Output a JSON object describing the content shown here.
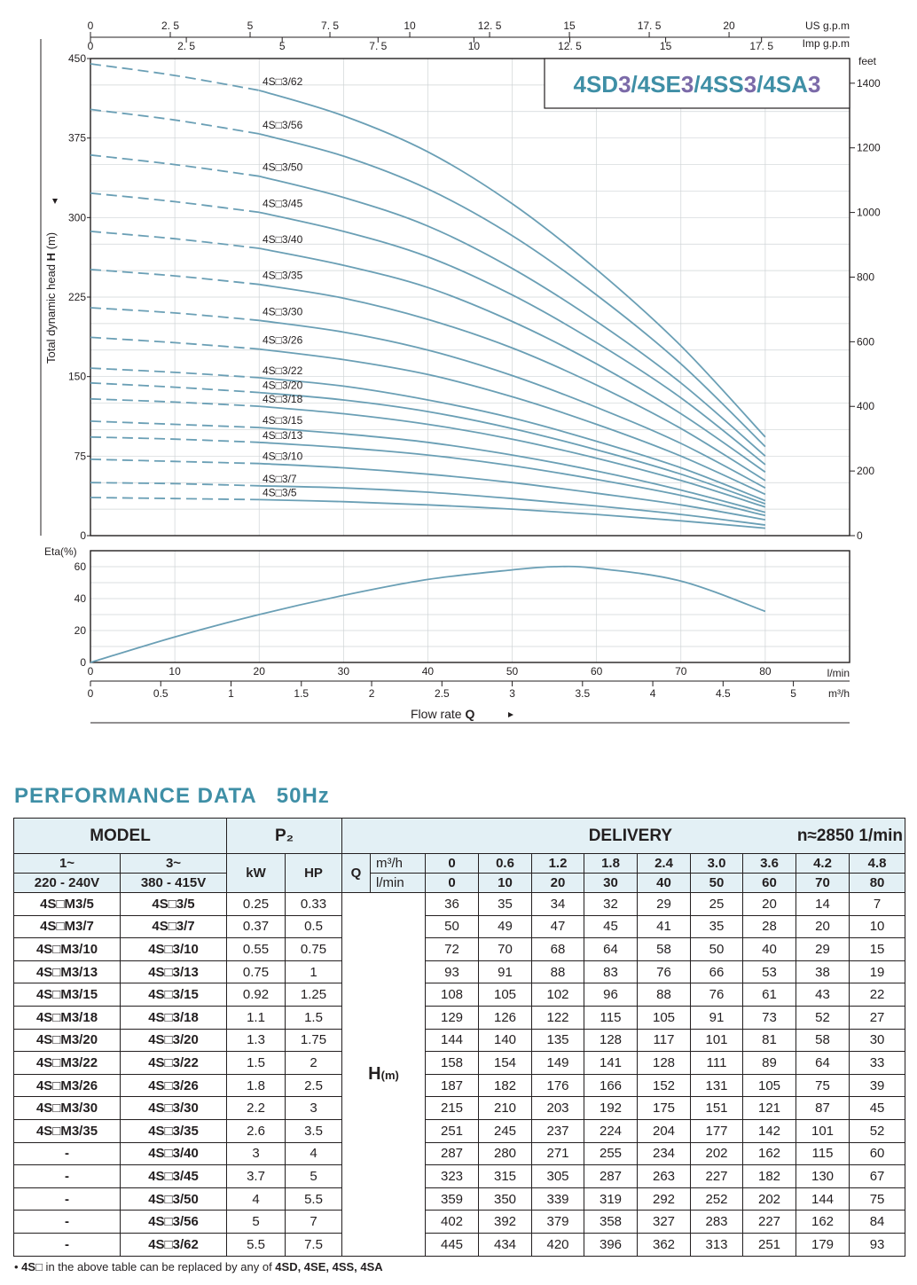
{
  "chart_data": [
    {
      "type": "line",
      "title": "4SD3/4SE3/4SS3/4SA3",
      "title_parts": [
        "4SD",
        "3",
        "/4SE",
        "3",
        "/4SS",
        "3",
        "/4SA",
        "3"
      ],
      "ylabel_prefix": "Total dynamic head ",
      "ylabel_bold": "H",
      "ylabel_suffix": " (m)",
      "ylim": [
        0,
        450
      ],
      "yticks": [
        "0",
        "75",
        "150",
        "225",
        "300",
        "375",
        "450"
      ],
      "y2label": "feet",
      "y2ticks": [
        "0",
        "200",
        "400",
        "600",
        "800",
        "1000",
        "1200",
        "1400"
      ],
      "y2_values": [
        0,
        200,
        400,
        600,
        800,
        1000,
        1200,
        1400
      ],
      "top_axis1_label": "US g.p.m",
      "top_axis1_ticks": [
        "0",
        "2. 5",
        "5",
        "7. 5",
        "10",
        "12. 5",
        "15",
        "17. 5",
        "20"
      ],
      "top_axis1_values": [
        0,
        2.5,
        5,
        7.5,
        10,
        12.5,
        15,
        17.5,
        20
      ],
      "top_axis2_label": "Imp g.p.m",
      "top_axis2_ticks": [
        "0",
        "2. 5",
        "5",
        "7. 5",
        "10",
        "12. 5",
        "15",
        "17. 5"
      ],
      "top_axis2_values": [
        0,
        2.5,
        5,
        7.5,
        10,
        12.5,
        15,
        17.5
      ],
      "xlim": [
        0,
        90
      ],
      "x_unit": "l/min",
      "dashed_until": 20,
      "x": [
        0,
        10,
        20,
        30,
        40,
        50,
        60,
        70,
        80
      ],
      "series": [
        {
          "name": "4S□3/62",
          "values": [
            445,
            434,
            420,
            396,
            362,
            313,
            251,
            179,
            93
          ]
        },
        {
          "name": "4S□3/56",
          "values": [
            402,
            392,
            379,
            358,
            327,
            283,
            227,
            162,
            84
          ]
        },
        {
          "name": "4S□3/50",
          "values": [
            359,
            350,
            339,
            319,
            292,
            252,
            202,
            144,
            75
          ]
        },
        {
          "name": "4S□3/45",
          "values": [
            323,
            315,
            305,
            287,
            263,
            227,
            182,
            130,
            67
          ]
        },
        {
          "name": "4S□3/40",
          "values": [
            287,
            280,
            271,
            255,
            234,
            202,
            162,
            115,
            60
          ]
        },
        {
          "name": "4S□3/35",
          "values": [
            251,
            245,
            237,
            224,
            204,
            177,
            142,
            101,
            52
          ]
        },
        {
          "name": "4S□3/30",
          "values": [
            215,
            210,
            203,
            192,
            175,
            151,
            121,
            87,
            45
          ]
        },
        {
          "name": "4S□3/26",
          "values": [
            187,
            182,
            176,
            166,
            152,
            131,
            105,
            75,
            39
          ]
        },
        {
          "name": "4S□3/22",
          "values": [
            158,
            154,
            149,
            141,
            128,
            111,
            89,
            64,
            33
          ]
        },
        {
          "name": "4S□3/20",
          "values": [
            144,
            140,
            135,
            128,
            117,
            101,
            81,
            58,
            30
          ]
        },
        {
          "name": "4S□3/18",
          "values": [
            129,
            126,
            122,
            115,
            105,
            91,
            73,
            52,
            27
          ]
        },
        {
          "name": "4S□3/15",
          "values": [
            108,
            105,
            102,
            96,
            88,
            76,
            61,
            43,
            22
          ]
        },
        {
          "name": "4S□3/13",
          "values": [
            93,
            91,
            88,
            83,
            76,
            66,
            53,
            38,
            19
          ]
        },
        {
          "name": "4S□3/10",
          "values": [
            72,
            70,
            68,
            64,
            58,
            50,
            40,
            29,
            15
          ]
        },
        {
          "name": "4S□3/7",
          "values": [
            50,
            49,
            47,
            45,
            41,
            35,
            28,
            20,
            10
          ]
        },
        {
          "name": "4S□3/5",
          "values": [
            36,
            35,
            34,
            32,
            29,
            25,
            20,
            14,
            7
          ]
        }
      ],
      "colors": {
        "curve": "#6a9fb5",
        "title": "#3f8fa6",
        "accent": "#7b6aa8"
      },
      "grid": true
    },
    {
      "type": "line",
      "ylabel": "Eta(%)",
      "ylim": [
        0,
        60
      ],
      "yticks": [
        "0",
        "20",
        "40",
        "60"
      ],
      "xlim": [
        0,
        90
      ],
      "xticks": [
        "0",
        "10",
        "20",
        "30",
        "40",
        "50",
        "60",
        "70",
        "80"
      ],
      "x_unit": "l/min",
      "x2ticks": [
        "0",
        "0.5",
        "1",
        "1.5",
        "2",
        "2.5",
        "3",
        "3.5",
        "4",
        "4.5",
        "5"
      ],
      "x2_values": [
        0,
        0.5,
        1,
        1.5,
        2,
        2.5,
        3,
        3.5,
        4,
        4.5,
        5
      ],
      "x2_unit": "m³/h",
      "xlabel_prefix": "Flow  rate  ",
      "xlabel_bold": "Q",
      "x": [
        0,
        10,
        20,
        30,
        40,
        50,
        55,
        60,
        70,
        80
      ],
      "series": [
        {
          "values": [
            0,
            16,
            30,
            42,
            52,
            58,
            60,
            59,
            51,
            32
          ]
        }
      ],
      "grid": true
    }
  ],
  "performance": {
    "title": "PERFORMANCE  DATA",
    "hz": "50Hz",
    "model_header": "MODEL",
    "p2_header": "P₂",
    "delivery_header": "DELIVERY",
    "speed": "n≈2850 1/min",
    "single_phase": "1~",
    "single_phase_voltage": "220 - 240V",
    "three_phase": "3~",
    "three_phase_voltage": "380 - 415V",
    "kw": "kW",
    "hp": "HP",
    "q": "Q",
    "unit_m3h": "m³/h",
    "unit_lmin": "l/min",
    "h_label": "H",
    "h_unit": "(m)",
    "q_m3h": [
      "0",
      "0.6",
      "1.2",
      "1.8",
      "2.4",
      "3.0",
      "3.6",
      "4.2",
      "4.8"
    ],
    "q_lmin": [
      "0",
      "10",
      "20",
      "30",
      "40",
      "50",
      "60",
      "70",
      "80"
    ],
    "rows": [
      {
        "m1": "4S□M3/5",
        "m3": "4S□3/5",
        "kw": "0.25",
        "hp": "0.33",
        "h": [
          "36",
          "35",
          "34",
          "32",
          "29",
          "25",
          "20",
          "14",
          "7"
        ]
      },
      {
        "m1": "4S□M3/7",
        "m3": "4S□3/7",
        "kw": "0.37",
        "hp": "0.5",
        "h": [
          "50",
          "49",
          "47",
          "45",
          "41",
          "35",
          "28",
          "20",
          "10"
        ]
      },
      {
        "m1": "4S□M3/10",
        "m3": "4S□3/10",
        "kw": "0.55",
        "hp": "0.75",
        "h": [
          "72",
          "70",
          "68",
          "64",
          "58",
          "50",
          "40",
          "29",
          "15"
        ]
      },
      {
        "m1": "4S□M3/13",
        "m3": "4S□3/13",
        "kw": "0.75",
        "hp": "1",
        "h": [
          "93",
          "91",
          "88",
          "83",
          "76",
          "66",
          "53",
          "38",
          "19"
        ]
      },
      {
        "m1": "4S□M3/15",
        "m3": "4S□3/15",
        "kw": "0.92",
        "hp": "1.25",
        "h": [
          "108",
          "105",
          "102",
          "96",
          "88",
          "76",
          "61",
          "43",
          "22"
        ]
      },
      {
        "m1": "4S□M3/18",
        "m3": "4S□3/18",
        "kw": "1.1",
        "hp": "1.5",
        "h": [
          "129",
          "126",
          "122",
          "115",
          "105",
          "91",
          "73",
          "52",
          "27"
        ]
      },
      {
        "m1": "4S□M3/20",
        "m3": "4S□3/20",
        "kw": "1.3",
        "hp": "1.75",
        "h": [
          "144",
          "140",
          "135",
          "128",
          "117",
          "101",
          "81",
          "58",
          "30"
        ]
      },
      {
        "m1": "4S□M3/22",
        "m3": "4S□3/22",
        "kw": "1.5",
        "hp": "2",
        "h": [
          "158",
          "154",
          "149",
          "141",
          "128",
          "111",
          "89",
          "64",
          "33"
        ]
      },
      {
        "m1": "4S□M3/26",
        "m3": "4S□3/26",
        "kw": "1.8",
        "hp": "2.5",
        "h": [
          "187",
          "182",
          "176",
          "166",
          "152",
          "131",
          "105",
          "75",
          "39"
        ]
      },
      {
        "m1": "4S□M3/30",
        "m3": "4S□3/30",
        "kw": "2.2",
        "hp": "3",
        "h": [
          "215",
          "210",
          "203",
          "192",
          "175",
          "151",
          "121",
          "87",
          "45"
        ]
      },
      {
        "m1": "4S□M3/35",
        "m3": "4S□3/35",
        "kw": "2.6",
        "hp": "3.5",
        "h": [
          "251",
          "245",
          "237",
          "224",
          "204",
          "177",
          "142",
          "101",
          "52"
        ]
      },
      {
        "m1": "-",
        "m3": "4S□3/40",
        "kw": "3",
        "hp": "4",
        "h": [
          "287",
          "280",
          "271",
          "255",
          "234",
          "202",
          "162",
          "115",
          "60"
        ]
      },
      {
        "m1": "-",
        "m3": "4S□3/45",
        "kw": "3.7",
        "hp": "5",
        "h": [
          "323",
          "315",
          "305",
          "287",
          "263",
          "227",
          "182",
          "130",
          "67"
        ]
      },
      {
        "m1": "-",
        "m3": "4S□3/50",
        "kw": "4",
        "hp": "5.5",
        "h": [
          "359",
          "350",
          "339",
          "319",
          "292",
          "252",
          "202",
          "144",
          "75"
        ]
      },
      {
        "m1": "-",
        "m3": "4S□3/56",
        "kw": "5",
        "hp": "7",
        "h": [
          "402",
          "392",
          "379",
          "358",
          "327",
          "283",
          "227",
          "162",
          "84"
        ]
      },
      {
        "m1": "-",
        "m3": "4S□3/62",
        "kw": "5.5",
        "hp": "7.5",
        "h": [
          "445",
          "434",
          "420",
          "396",
          "362",
          "313",
          "251",
          "179",
          "93"
        ]
      }
    ],
    "header_bg": "#e3f0f5"
  },
  "footnote": {
    "bullet": "• ",
    "prefix": "4S□",
    "text": " in the above table can be replaced by any of ",
    "models": "4SD, 4SE, 4SS, 4SA"
  }
}
